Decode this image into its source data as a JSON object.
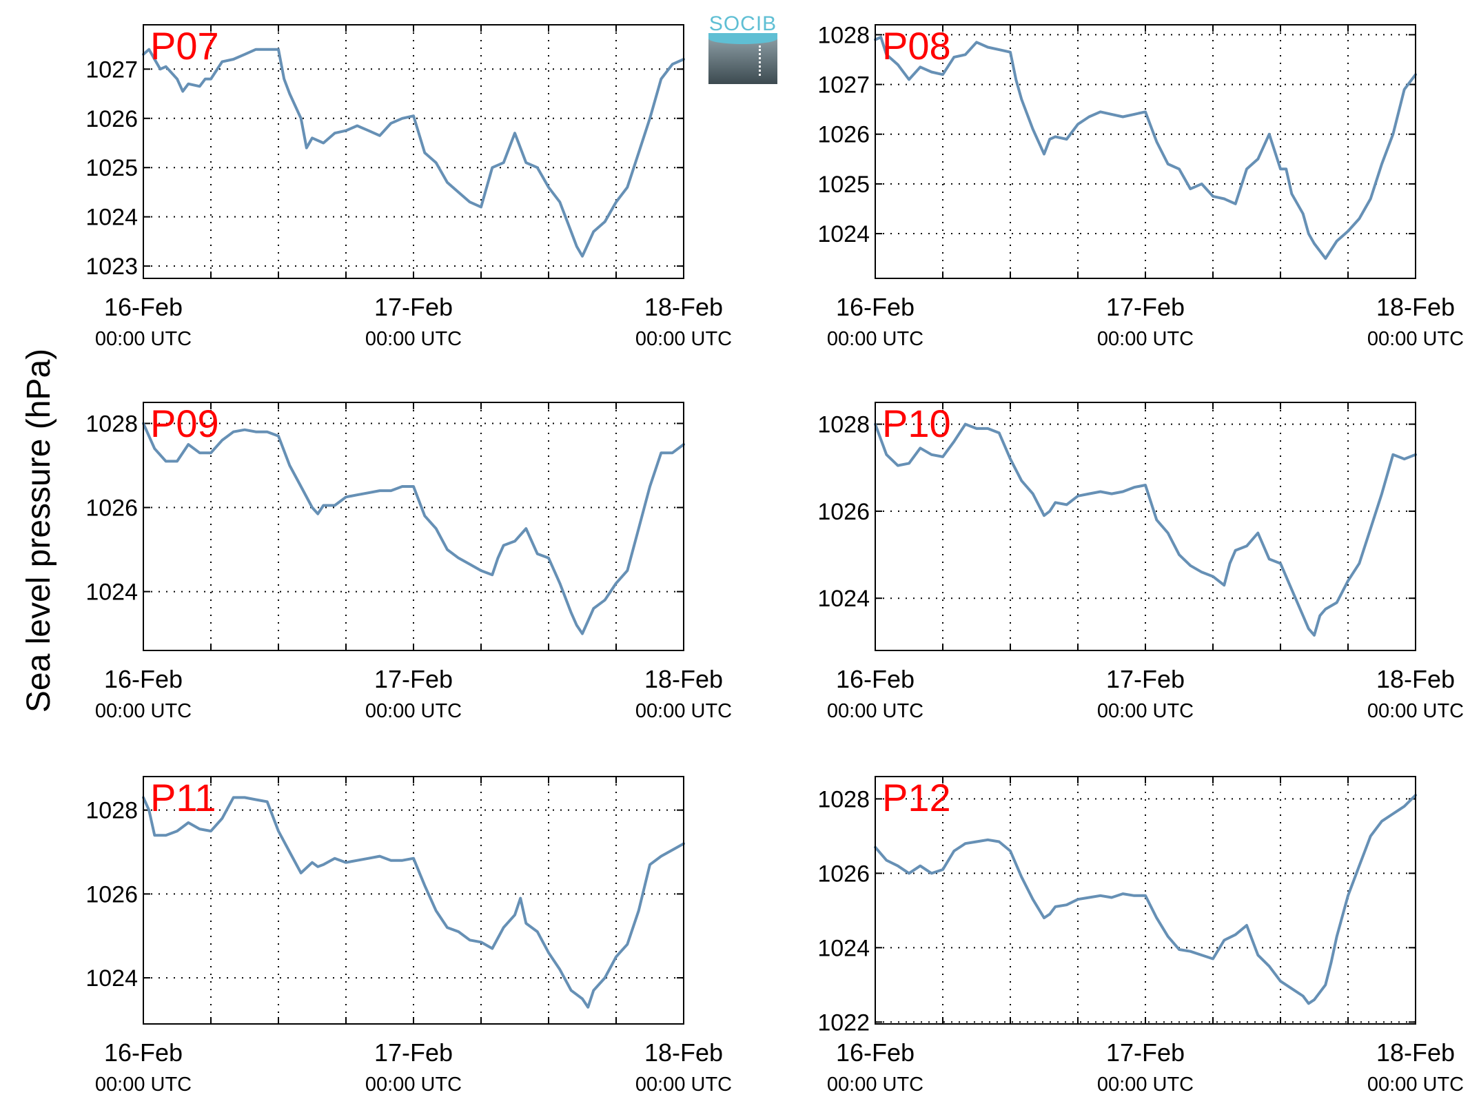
{
  "y_axis_label": "Sea level pressure (hPa)",
  "logo": {
    "text": "SOCIB"
  },
  "colors": {
    "line": "#6690b5",
    "station_label": "#ff0000",
    "axis": "#000000"
  },
  "chart_data": [
    {
      "type": "line",
      "title": "P07",
      "x_ticks": [
        {
          "main": "16-Feb",
          "sub": "00:00 UTC"
        },
        {
          "main": "17-Feb",
          "sub": "00:00 UTC"
        },
        {
          "main": "18-Feb",
          "sub": "00:00 UTC"
        }
      ],
      "xlim": [
        0,
        48
      ],
      "grid_step_hours": 6,
      "ylim": [
        1022.75,
        1027.9
      ],
      "yticks": [
        1023,
        1024,
        1025,
        1026,
        1027
      ],
      "series": [
        {
          "x": [
            0,
            0.5,
            1,
            1.5,
            2,
            3,
            3.5,
            4,
            5,
            5.5,
            6,
            7,
            8,
            9,
            10,
            11,
            12,
            12.5,
            13,
            14,
            14.5,
            15,
            16,
            17,
            18,
            19,
            20,
            21,
            22,
            23,
            24,
            25,
            26,
            27,
            28,
            29,
            30,
            31,
            32,
            33,
            34,
            35,
            36,
            37,
            38,
            38.5,
            39,
            40,
            41,
            42,
            43,
            44,
            45,
            46,
            47,
            48
          ],
          "y": [
            1027.3,
            1027.4,
            1027.2,
            1027.0,
            1027.05,
            1026.8,
            1026.55,
            1026.7,
            1026.65,
            1026.8,
            1026.8,
            1027.15,
            1027.2,
            1027.3,
            1027.4,
            1027.4,
            1027.4,
            1026.8,
            1026.5,
            1026.0,
            1025.4,
            1025.6,
            1025.5,
            1025.7,
            1025.75,
            1025.85,
            1025.75,
            1025.65,
            1025.9,
            1026.0,
            1026.05,
            1025.3,
            1025.1,
            1024.7,
            1024.5,
            1024.3,
            1024.2,
            1025.0,
            1025.1,
            1025.7,
            1025.1,
            1025.0,
            1024.6,
            1024.3,
            1023.7,
            1023.4,
            1023.2,
            1023.7,
            1023.9,
            1024.3,
            1024.6,
            1025.3,
            1026.0,
            1026.8,
            1027.1,
            1027.2
          ]
        }
      ]
    },
    {
      "type": "line",
      "title": "P08",
      "x_ticks": [
        {
          "main": "16-Feb",
          "sub": "00:00 UTC"
        },
        {
          "main": "17-Feb",
          "sub": "00:00 UTC"
        },
        {
          "main": "18-Feb",
          "sub": "00:00 UTC"
        }
      ],
      "xlim": [
        0,
        48
      ],
      "grid_step_hours": 6,
      "ylim": [
        1023.1,
        1028.2
      ],
      "yticks": [
        1024,
        1025,
        1026,
        1027,
        1028
      ],
      "series": [
        {
          "x": [
            0,
            0.5,
            1,
            2,
            3,
            4,
            5,
            6,
            7,
            8,
            9,
            10,
            11,
            12,
            12.5,
            13,
            14,
            15,
            15.5,
            16,
            17,
            18,
            19,
            20,
            21,
            22,
            23,
            24,
            25,
            26,
            27,
            28,
            29,
            30,
            31,
            32,
            33,
            34,
            35,
            36,
            36.5,
            37,
            38,
            38.5,
            39,
            40,
            41,
            42,
            43,
            44,
            45,
            46,
            47,
            48
          ],
          "y": [
            1027.9,
            1027.95,
            1027.6,
            1027.4,
            1027.1,
            1027.35,
            1027.25,
            1027.2,
            1027.55,
            1027.6,
            1027.85,
            1027.75,
            1027.7,
            1027.65,
            1027.1,
            1026.7,
            1026.1,
            1025.6,
            1025.9,
            1025.95,
            1025.9,
            1026.2,
            1026.35,
            1026.45,
            1026.4,
            1026.35,
            1026.4,
            1026.45,
            1025.85,
            1025.4,
            1025.3,
            1024.9,
            1025.0,
            1024.75,
            1024.7,
            1024.6,
            1025.3,
            1025.5,
            1026.0,
            1025.3,
            1025.3,
            1024.8,
            1024.4,
            1024.0,
            1023.8,
            1023.5,
            1023.85,
            1024.05,
            1024.3,
            1024.7,
            1025.4,
            1026.0,
            1026.9,
            1027.2
          ]
        }
      ]
    },
    {
      "type": "line",
      "title": "P09",
      "x_ticks": [
        {
          "main": "16-Feb",
          "sub": "00:00 UTC"
        },
        {
          "main": "17-Feb",
          "sub": "00:00 UTC"
        },
        {
          "main": "18-Feb",
          "sub": "00:00 UTC"
        }
      ],
      "xlim": [
        0,
        48
      ],
      "grid_step_hours": 6,
      "ylim": [
        1022.6,
        1028.5
      ],
      "yticks": [
        1024,
        1026,
        1028
      ],
      "series": [
        {
          "x": [
            0,
            1,
            2,
            3,
            4,
            5,
            6,
            7,
            8,
            9,
            10,
            11,
            12,
            13,
            14,
            15,
            15.5,
            16,
            17,
            18,
            19,
            20,
            21,
            22,
            23,
            24,
            25,
            26,
            27,
            28,
            29,
            30,
            31,
            31.5,
            32,
            33,
            34,
            35,
            36,
            37,
            38,
            38.5,
            39,
            40,
            41,
            42,
            43,
            44,
            45,
            46,
            47,
            48
          ],
          "y": [
            1028.0,
            1027.4,
            1027.1,
            1027.1,
            1027.5,
            1027.3,
            1027.3,
            1027.6,
            1027.8,
            1027.85,
            1027.8,
            1027.8,
            1027.7,
            1027.0,
            1026.5,
            1026.0,
            1025.85,
            1026.05,
            1026.05,
            1026.25,
            1026.3,
            1026.35,
            1026.4,
            1026.4,
            1026.5,
            1026.5,
            1025.8,
            1025.5,
            1025.0,
            1024.8,
            1024.65,
            1024.5,
            1024.4,
            1024.8,
            1025.1,
            1025.2,
            1025.5,
            1024.9,
            1024.8,
            1024.2,
            1023.5,
            1023.2,
            1023.0,
            1023.6,
            1023.8,
            1024.2,
            1024.5,
            1025.5,
            1026.5,
            1027.3,
            1027.3,
            1027.5
          ]
        }
      ]
    },
    {
      "type": "line",
      "title": "P10",
      "x_ticks": [
        {
          "main": "16-Feb",
          "sub": "00:00 UTC"
        },
        {
          "main": "17-Feb",
          "sub": "00:00 UTC"
        },
        {
          "main": "18-Feb",
          "sub": "00:00 UTC"
        }
      ],
      "xlim": [
        0,
        48
      ],
      "grid_step_hours": 6,
      "ylim": [
        1022.8,
        1028.5
      ],
      "yticks": [
        1024,
        1026,
        1028
      ],
      "series": [
        {
          "x": [
            0,
            1,
            2,
            3,
            4,
            5,
            6,
            7,
            8,
            9,
            10,
            11,
            12,
            13,
            14,
            15,
            15.5,
            16,
            17,
            18,
            19,
            20,
            21,
            22,
            23,
            24,
            25,
            26,
            27,
            28,
            29,
            30,
            31,
            31.5,
            32,
            33,
            34,
            35,
            36,
            37,
            38,
            38.5,
            39,
            39.5,
            40,
            41,
            42,
            43,
            44,
            45,
            46,
            47,
            48
          ],
          "y": [
            1028.0,
            1027.3,
            1027.05,
            1027.1,
            1027.45,
            1027.3,
            1027.25,
            1027.6,
            1028.0,
            1027.9,
            1027.9,
            1027.8,
            1027.2,
            1026.7,
            1026.4,
            1025.9,
            1026.0,
            1026.2,
            1026.15,
            1026.35,
            1026.4,
            1026.45,
            1026.4,
            1026.45,
            1026.55,
            1026.6,
            1025.8,
            1025.5,
            1025.0,
            1024.75,
            1024.6,
            1024.5,
            1024.3,
            1024.8,
            1025.1,
            1025.2,
            1025.5,
            1024.9,
            1024.8,
            1024.2,
            1023.6,
            1023.3,
            1023.15,
            1023.6,
            1023.75,
            1023.9,
            1024.4,
            1024.8,
            1025.6,
            1026.4,
            1027.3,
            1027.2,
            1027.3
          ]
        }
      ]
    },
    {
      "type": "line",
      "title": "P11",
      "x_ticks": [
        {
          "main": "16-Feb",
          "sub": "00:00 UTC"
        },
        {
          "main": "17-Feb",
          "sub": "00:00 UTC"
        },
        {
          "main": "18-Feb",
          "sub": "00:00 UTC"
        }
      ],
      "xlim": [
        0,
        48
      ],
      "grid_step_hours": 6,
      "ylim": [
        1022.9,
        1028.8
      ],
      "yticks": [
        1024,
        1026,
        1028
      ],
      "series": [
        {
          "x": [
            0,
            0.5,
            1,
            2,
            3,
            4,
            5,
            6,
            7,
            8,
            9,
            10,
            11,
            12,
            13,
            14,
            15,
            15.5,
            16,
            17,
            18,
            19,
            20,
            21,
            22,
            23,
            24,
            25,
            26,
            27,
            28,
            29,
            30,
            31,
            32,
            33,
            33.5,
            34,
            35,
            36,
            37,
            38,
            39,
            39.5,
            40,
            41,
            42,
            43,
            44,
            45,
            46,
            47,
            48
          ],
          "y": [
            1028.3,
            1028.0,
            1027.4,
            1027.4,
            1027.5,
            1027.7,
            1027.55,
            1027.5,
            1027.8,
            1028.3,
            1028.3,
            1028.25,
            1028.2,
            1027.5,
            1027.0,
            1026.5,
            1026.75,
            1026.65,
            1026.7,
            1026.85,
            1026.75,
            1026.8,
            1026.85,
            1026.9,
            1026.8,
            1026.8,
            1026.85,
            1026.2,
            1025.6,
            1025.2,
            1025.1,
            1024.9,
            1024.85,
            1024.7,
            1025.2,
            1025.5,
            1025.9,
            1025.3,
            1025.1,
            1024.6,
            1024.2,
            1023.7,
            1023.5,
            1023.3,
            1023.7,
            1024.0,
            1024.5,
            1024.8,
            1025.6,
            1026.7,
            1026.9,
            1027.05,
            1027.2
          ]
        }
      ]
    },
    {
      "type": "line",
      "title": "P12",
      "x_ticks": [
        {
          "main": "16-Feb",
          "sub": "00:00 UTC"
        },
        {
          "main": "17-Feb",
          "sub": "00:00 UTC"
        },
        {
          "main": "18-Feb",
          "sub": "00:00 UTC"
        }
      ],
      "xlim": [
        0,
        48
      ],
      "grid_step_hours": 6,
      "ylim": [
        1021.95,
        1028.6
      ],
      "yticks": [
        1022,
        1024,
        1026,
        1028
      ],
      "series": [
        {
          "x": [
            0,
            1,
            2,
            3,
            4,
            5,
            6,
            7,
            8,
            9,
            10,
            11,
            12,
            13,
            14,
            15,
            15.5,
            16,
            17,
            18,
            19,
            20,
            21,
            22,
            23,
            24,
            25,
            26,
            27,
            28,
            29,
            30,
            31,
            32,
            33,
            34,
            35,
            36,
            37,
            38,
            38.5,
            39,
            40,
            40.5,
            41,
            42,
            43,
            44,
            45,
            46,
            47,
            48
          ],
          "y": [
            1026.7,
            1026.35,
            1026.2,
            1026.0,
            1026.2,
            1026.0,
            1026.1,
            1026.6,
            1026.8,
            1026.85,
            1026.9,
            1026.85,
            1026.6,
            1025.9,
            1025.3,
            1024.8,
            1024.9,
            1025.1,
            1025.15,
            1025.3,
            1025.35,
            1025.4,
            1025.35,
            1025.45,
            1025.4,
            1025.4,
            1024.8,
            1024.3,
            1023.95,
            1023.9,
            1023.8,
            1023.7,
            1024.2,
            1024.35,
            1024.6,
            1023.8,
            1023.5,
            1023.1,
            1022.9,
            1022.7,
            1022.5,
            1022.6,
            1023.0,
            1023.6,
            1024.3,
            1025.4,
            1026.2,
            1027.0,
            1027.4,
            1027.6,
            1027.8,
            1028.1
          ]
        }
      ]
    }
  ]
}
